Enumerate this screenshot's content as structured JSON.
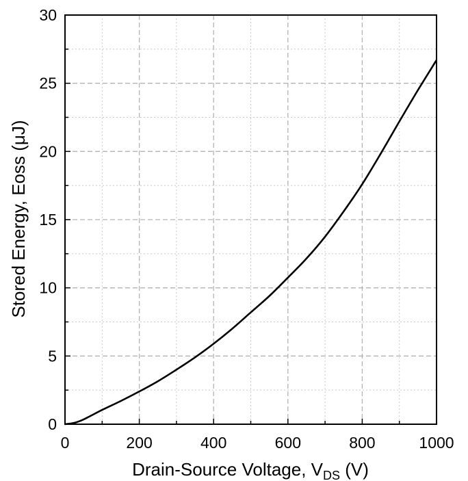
{
  "chart_data": {
    "type": "line",
    "title": "",
    "xlabel_main": "Drain-Source Voltage, V",
    "xlabel_sub": "DS",
    "xlabel_tail": " (V)",
    "ylabel": "Stored Energy, Eoss (μJ)",
    "xlim": [
      0,
      1000
    ],
    "ylim": [
      0,
      30
    ],
    "xticks": [
      "0",
      "200",
      "400",
      "600",
      "800",
      "1000"
    ],
    "yticks": [
      "0",
      "5",
      "10",
      "15",
      "20",
      "25",
      "30"
    ],
    "grid": true,
    "line_color": "#000000",
    "series": [
      {
        "x": [
          0,
          25,
          50,
          100,
          150,
          200,
          250,
          300,
          350,
          400,
          450,
          500,
          550,
          600,
          650,
          700,
          750,
          800,
          850,
          900,
          950,
          1000
        ],
        "y": [
          0,
          0.1,
          0.35,
          1.05,
          1.7,
          2.4,
          3.15,
          4.0,
          4.9,
          5.9,
          7.0,
          8.2,
          9.4,
          10.75,
          12.15,
          13.75,
          15.6,
          17.6,
          19.85,
          22.2,
          24.5,
          26.7
        ]
      }
    ]
  }
}
